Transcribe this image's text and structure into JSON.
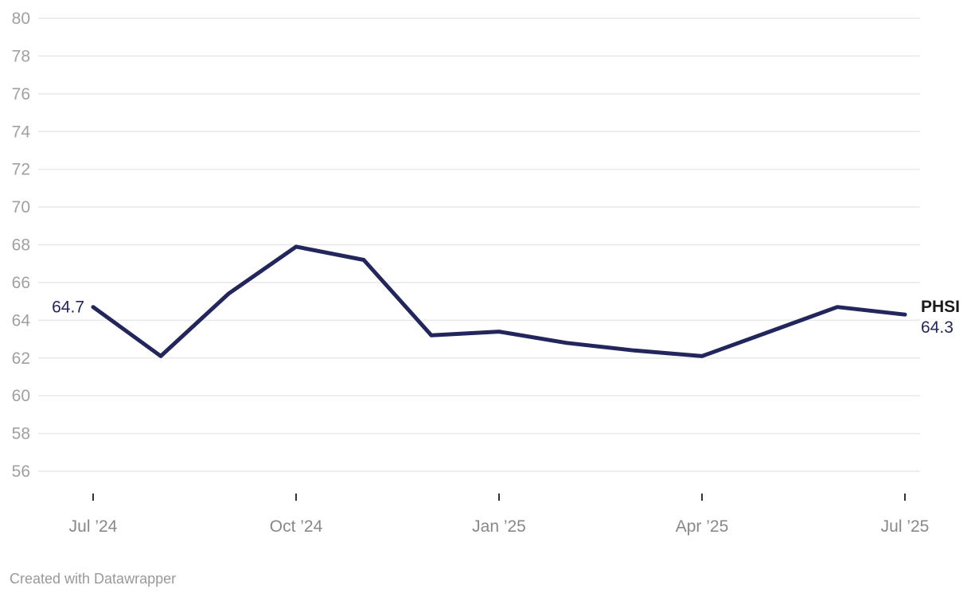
{
  "chart_data": {
    "type": "line",
    "title": "",
    "xlabel": "",
    "ylabel": "",
    "x": [
      "Jul ’24",
      "Aug ’24",
      "Sep ’24",
      "Oct ’24",
      "Nov ’24",
      "Dec ’24",
      "Jan ’25",
      "Feb ’25",
      "Mar ’25",
      "Apr ’25",
      "May ’25",
      "Jun ’25",
      "Jul ’25"
    ],
    "series": [
      {
        "name": "PHSI",
        "values": [
          64.7,
          62.1,
          65.4,
          67.9,
          67.2,
          63.2,
          63.4,
          62.8,
          62.4,
          62.1,
          63.4,
          64.7,
          64.3
        ]
      }
    ],
    "x_tick_labels": [
      "Jul ’24",
      "Oct ’24",
      "Jan ’25",
      "Apr ’25",
      "Jul ’25"
    ],
    "x_tick_indices": [
      0,
      3,
      6,
      9,
      12
    ],
    "y_ticks": [
      80,
      78,
      76,
      74,
      72,
      70,
      68,
      66,
      64,
      62,
      60,
      58,
      56
    ],
    "ylim": [
      56,
      80
    ],
    "grid": "horizontal",
    "legend_position": "direct-label-right",
    "start_value_label": "64.7",
    "end_series_label": "PHSI",
    "end_value_label": "64.3",
    "colors": {
      "line": "#23265c",
      "value_label": "#23265c",
      "series_label": "#1a1a1a",
      "y_axis_label": "#a0a0a0",
      "x_axis_label": "#888888",
      "gridline": "#e8e8e8",
      "tick": "#333333",
      "credit": "#999999",
      "background": "#ffffff"
    }
  },
  "footer": {
    "credit": "Created with Datawrapper"
  }
}
